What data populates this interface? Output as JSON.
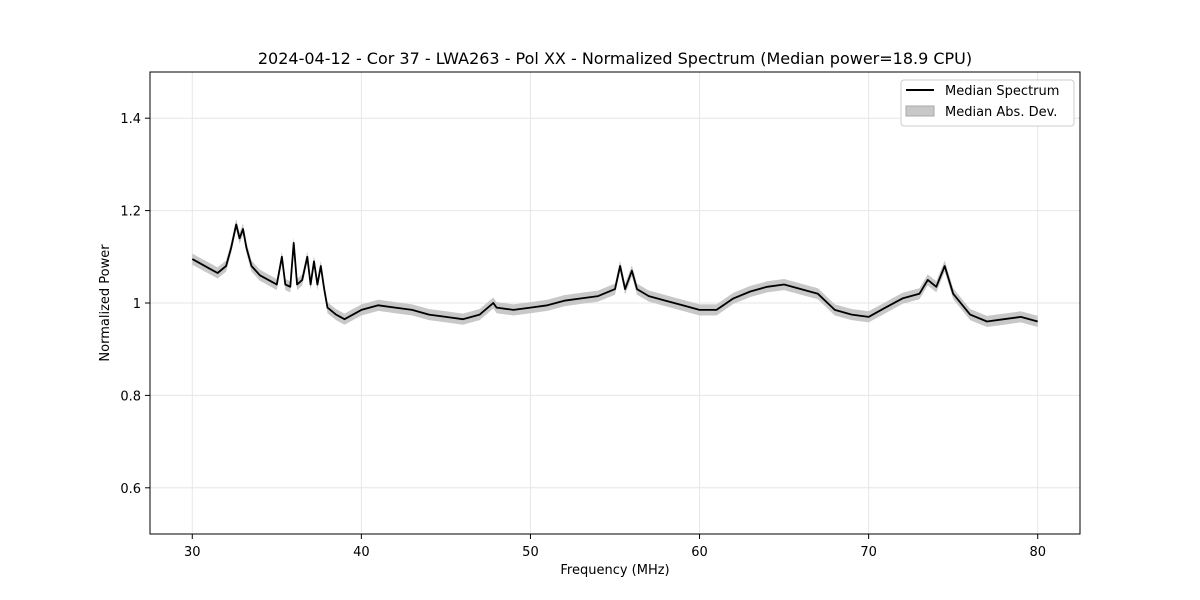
{
  "chart_data": {
    "type": "line",
    "title": "2024-04-12 - Cor 37 - LWA263 - Pol XX - Normalized Spectrum (Median power=18.9 CPU)",
    "xlabel": "Frequency (MHz)",
    "ylabel": "Normalized Power",
    "xlim": [
      27.5,
      82.5
    ],
    "ylim": [
      0.5,
      1.5
    ],
    "xticks": [
      30,
      40,
      50,
      60,
      70,
      80
    ],
    "yticks": [
      0.6,
      0.8,
      1.0,
      1.2,
      1.4
    ],
    "grid": true,
    "legend_position": "top-right",
    "series": [
      {
        "name": "Median Spectrum",
        "style": "line",
        "color": "#000000",
        "x": [
          30.0,
          30.5,
          31.0,
          31.5,
          32.0,
          32.3,
          32.6,
          32.8,
          33.0,
          33.2,
          33.5,
          34.0,
          34.5,
          35.0,
          35.3,
          35.5,
          35.8,
          36.0,
          36.2,
          36.5,
          36.8,
          37.0,
          37.2,
          37.4,
          37.6,
          37.8,
          38.0,
          38.5,
          39.0,
          40.0,
          41.0,
          42.0,
          43.0,
          44.0,
          45.0,
          46.0,
          47.0,
          47.8,
          48.0,
          49.0,
          50.0,
          51.0,
          52.0,
          53.0,
          54.0,
          55.0,
          55.3,
          55.6,
          56.0,
          56.3,
          57.0,
          58.0,
          59.0,
          60.0,
          61.0,
          62.0,
          63.0,
          64.0,
          65.0,
          66.0,
          67.0,
          68.0,
          69.0,
          70.0,
          71.0,
          72.0,
          73.0,
          73.5,
          74.0,
          74.5,
          75.0,
          76.0,
          77.0,
          78.0,
          79.0,
          80.0
        ],
        "y": [
          1.095,
          1.085,
          1.075,
          1.065,
          1.08,
          1.12,
          1.17,
          1.14,
          1.16,
          1.12,
          1.08,
          1.06,
          1.05,
          1.04,
          1.1,
          1.04,
          1.035,
          1.13,
          1.04,
          1.05,
          1.1,
          1.04,
          1.09,
          1.04,
          1.08,
          1.03,
          0.99,
          0.975,
          0.965,
          0.985,
          0.995,
          0.99,
          0.985,
          0.975,
          0.97,
          0.965,
          0.975,
          1.0,
          0.99,
          0.985,
          0.99,
          0.995,
          1.005,
          1.01,
          1.015,
          1.03,
          1.08,
          1.03,
          1.07,
          1.03,
          1.015,
          1.005,
          0.995,
          0.985,
          0.985,
          1.01,
          1.025,
          1.035,
          1.04,
          1.03,
          1.02,
          0.985,
          0.975,
          0.97,
          0.99,
          1.01,
          1.02,
          1.05,
          1.035,
          1.08,
          1.02,
          0.975,
          0.96,
          0.965,
          0.97,
          0.96
        ]
      },
      {
        "name": "Median Abs. Dev.",
        "style": "band",
        "color": "#c8c8c8",
        "half_width": 0.012
      }
    ]
  }
}
